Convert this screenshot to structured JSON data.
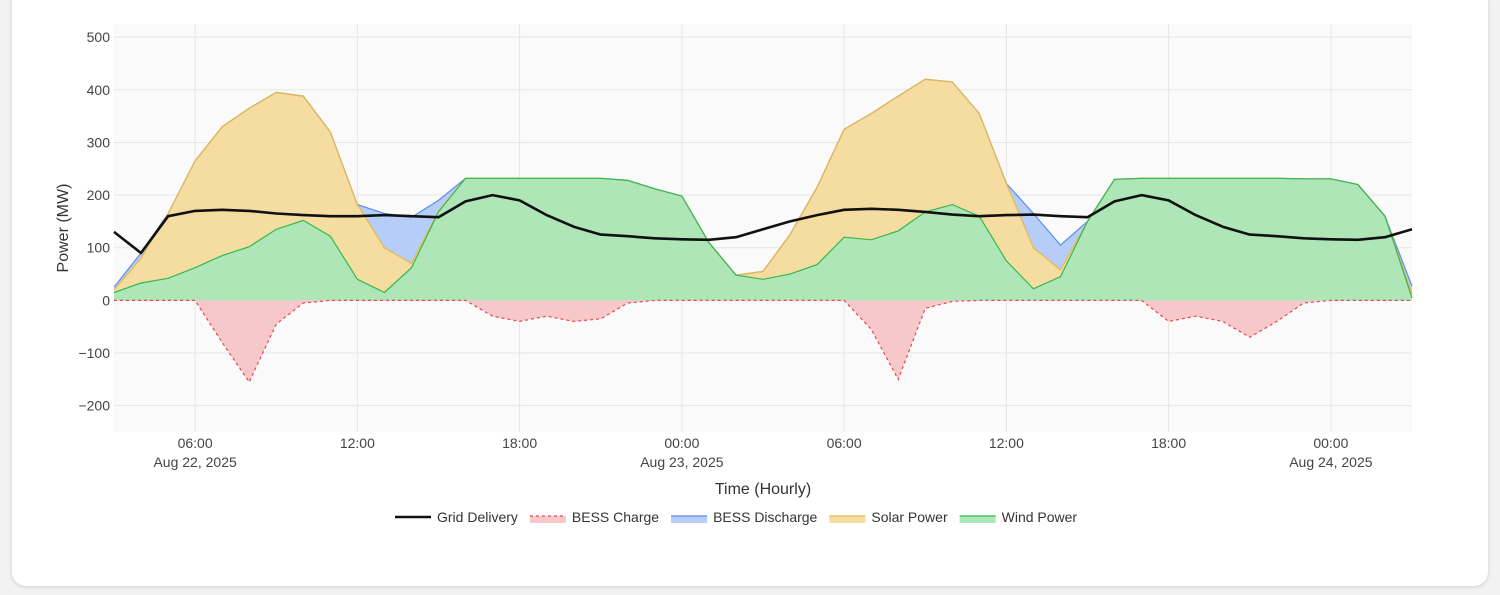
{
  "chart_data": {
    "type": "area",
    "xlabel": "Time (Hourly)",
    "ylabel": "Power (MW)",
    "ylim": [
      -250,
      525
    ],
    "y_ticks": [
      -200,
      -100,
      0,
      100,
      200,
      300,
      400,
      500
    ],
    "y_tick_labels": [
      "−200",
      "−100",
      "0",
      "100",
      "200",
      "300",
      "400",
      "500"
    ],
    "x_start": "2025-08-22 03:00",
    "x_end": "2025-08-24 03:00",
    "x_ticks": [
      {
        "time": "2025-08-22 06:00",
        "label": "06:00",
        "sublabel": "Aug 22, 2025"
      },
      {
        "time": "2025-08-22 12:00",
        "label": "12:00",
        "sublabel": ""
      },
      {
        "time": "2025-08-22 18:00",
        "label": "18:00",
        "sublabel": ""
      },
      {
        "time": "2025-08-23 00:00",
        "label": "00:00",
        "sublabel": "Aug 23, 2025"
      },
      {
        "time": "2025-08-23 06:00",
        "label": "06:00",
        "sublabel": ""
      },
      {
        "time": "2025-08-23 12:00",
        "label": "12:00",
        "sublabel": ""
      },
      {
        "time": "2025-08-23 18:00",
        "label": "18:00",
        "sublabel": ""
      },
      {
        "time": "2025-08-24 00:00",
        "label": "00:00",
        "sublabel": "Aug 24, 2025"
      }
    ],
    "grid": true,
    "legend_position": "bottom-center",
    "x": [
      "2025-08-22 03:00",
      "2025-08-22 04:00",
      "2025-08-22 05:00",
      "2025-08-22 06:00",
      "2025-08-22 07:00",
      "2025-08-22 08:00",
      "2025-08-22 09:00",
      "2025-08-22 10:00",
      "2025-08-22 11:00",
      "2025-08-22 12:00",
      "2025-08-22 13:00",
      "2025-08-22 14:00",
      "2025-08-22 15:00",
      "2025-08-22 16:00",
      "2025-08-22 17:00",
      "2025-08-22 18:00",
      "2025-08-22 19:00",
      "2025-08-22 20:00",
      "2025-08-22 21:00",
      "2025-08-22 22:00",
      "2025-08-22 23:00",
      "2025-08-23 00:00",
      "2025-08-23 01:00",
      "2025-08-23 02:00",
      "2025-08-23 03:00",
      "2025-08-23 04:00",
      "2025-08-23 05:00",
      "2025-08-23 06:00",
      "2025-08-23 07:00",
      "2025-08-23 08:00",
      "2025-08-23 09:00",
      "2025-08-23 10:00",
      "2025-08-23 11:00",
      "2025-08-23 12:00",
      "2025-08-23 13:00",
      "2025-08-23 14:00",
      "2025-08-23 15:00",
      "2025-08-23 16:00",
      "2025-08-23 17:00",
      "2025-08-23 18:00",
      "2025-08-23 19:00",
      "2025-08-23 20:00",
      "2025-08-23 21:00",
      "2025-08-23 22:00",
      "2025-08-23 23:00",
      "2025-08-24 00:00",
      "2025-08-24 01:00",
      "2025-08-24 02:00",
      "2025-08-24 03:00"
    ],
    "series": [
      {
        "name": "Grid Delivery",
        "style": "line",
        "color": "#111111",
        "values": [
          130,
          90,
          160,
          170,
          172,
          170,
          165,
          162,
          160,
          160,
          162,
          160,
          158,
          188,
          200,
          190,
          162,
          140,
          125,
          122,
          118,
          116,
          115,
          120,
          135,
          150,
          162,
          172,
          174,
          172,
          168,
          163,
          160,
          162,
          163,
          160,
          158,
          188,
          200,
          190,
          162,
          140,
          125,
          122,
          118,
          116,
          115,
          120,
          135
        ]
      },
      {
        "name": "BESS Charge",
        "style": "dash-fill",
        "color": "#e8474c",
        "fill": "#f7c8c9",
        "values": [
          0,
          0,
          0,
          0,
          -80,
          -155,
          -45,
          -5,
          0,
          0,
          0,
          0,
          0,
          0,
          -30,
          -40,
          -30,
          -40,
          -35,
          -5,
          0,
          0,
          0,
          0,
          0,
          0,
          0,
          0,
          -55,
          -150,
          -15,
          -2,
          0,
          0,
          0,
          0,
          0,
          0,
          0,
          -40,
          -30,
          -40,
          -70,
          -40,
          -5,
          0,
          0,
          0,
          0
        ]
      },
      {
        "name": "BESS Discharge",
        "style": "fill",
        "color": "#5b8fe8",
        "fill": "#b5cdf8",
        "values": [
          25,
          90,
          165,
          265,
          330,
          365,
          395,
          388,
          320,
          182,
          165,
          158,
          190,
          232,
          232,
          232,
          232,
          232,
          232,
          228,
          212,
          198,
          110,
          48,
          55,
          125,
          215,
          325,
          355,
          388,
          420,
          415,
          355,
          222,
          165,
          105,
          150,
          230,
          232,
          232,
          232,
          232,
          232,
          232,
          231,
          231,
          220,
          160,
          27
        ]
      },
      {
        "name": "Solar Power",
        "style": "fill",
        "color": "#e8b94a",
        "fill": "#f5dca0",
        "values": [
          20,
          80,
          165,
          265,
          330,
          365,
          395,
          388,
          320,
          182,
          100,
          70,
          170,
          232,
          232,
          232,
          232,
          232,
          232,
          228,
          212,
          198,
          110,
          48,
          55,
          125,
          215,
          325,
          355,
          388,
          420,
          415,
          355,
          222,
          100,
          58,
          150,
          230,
          232,
          232,
          232,
          232,
          232,
          232,
          231,
          231,
          220,
          160,
          12
        ]
      },
      {
        "name": "Wind Power",
        "style": "fill",
        "color": "#35b84d",
        "fill": "#aee6b8",
        "values": [
          15,
          33,
          42,
          62,
          85,
          102,
          135,
          152,
          122,
          40,
          15,
          62,
          168,
          232,
          232,
          232,
          232,
          232,
          232,
          228,
          212,
          198,
          110,
          48,
          40,
          50,
          68,
          120,
          115,
          132,
          168,
          182,
          160,
          75,
          22,
          45,
          150,
          230,
          232,
          232,
          232,
          232,
          232,
          232,
          231,
          231,
          220,
          160,
          5
        ]
      }
    ],
    "legend": [
      {
        "name": "Grid Delivery",
        "style": "line",
        "color": "#111111"
      },
      {
        "name": "BESS Charge",
        "style": "dash-fill",
        "color": "#e8474c",
        "fill": "#f7c8c9"
      },
      {
        "name": "BESS Discharge",
        "style": "fill",
        "color": "#5b8fe8",
        "fill": "#b5cdf8"
      },
      {
        "name": "Solar Power",
        "style": "fill",
        "color": "#e8b94a",
        "fill": "#f5dca0"
      },
      {
        "name": "Wind Power",
        "style": "fill",
        "color": "#35b84d",
        "fill": "#aee6b8"
      }
    ]
  }
}
